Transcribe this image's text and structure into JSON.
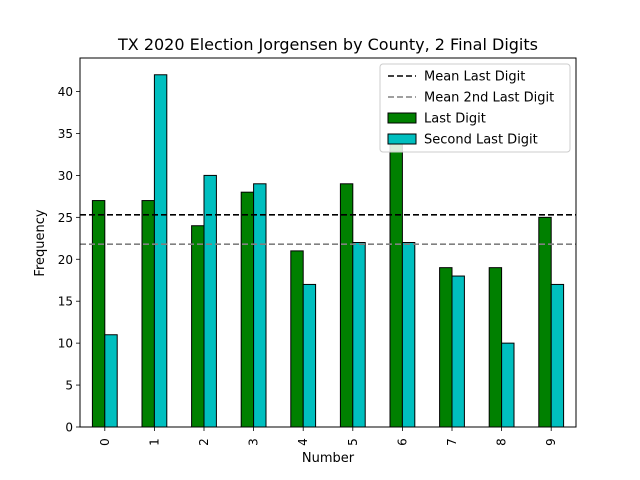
{
  "chart_data": {
    "type": "bar",
    "title": "TX 2020 Election Jorgensen by County, 2 Final Digits",
    "xlabel": "Number",
    "ylabel": "Frequency",
    "categories": [
      "0",
      "1",
      "2",
      "3",
      "4",
      "5",
      "6",
      "7",
      "8",
      "9"
    ],
    "series": [
      {
        "name": "Last Digit",
        "color": "#008000",
        "values": [
          27,
          27,
          24,
          28,
          21,
          29,
          34,
          19,
          19,
          25
        ]
      },
      {
        "name": "Second Last Digit",
        "color": "#00bfbf",
        "values": [
          11,
          42,
          30,
          29,
          17,
          22,
          22,
          18,
          10,
          17
        ]
      }
    ],
    "reference_lines": [
      {
        "name": "Mean Last Digit",
        "value": 25.3,
        "color": "#000000",
        "style": "dashed"
      },
      {
        "name": "Mean 2nd Last Digit",
        "value": 21.8,
        "color": "#808080",
        "style": "dashed"
      }
    ],
    "ylim": [
      0,
      44
    ],
    "yticks": [
      0,
      5,
      10,
      15,
      20,
      25,
      30,
      35,
      40
    ],
    "legend_position": "top-right",
    "grid": false
  }
}
